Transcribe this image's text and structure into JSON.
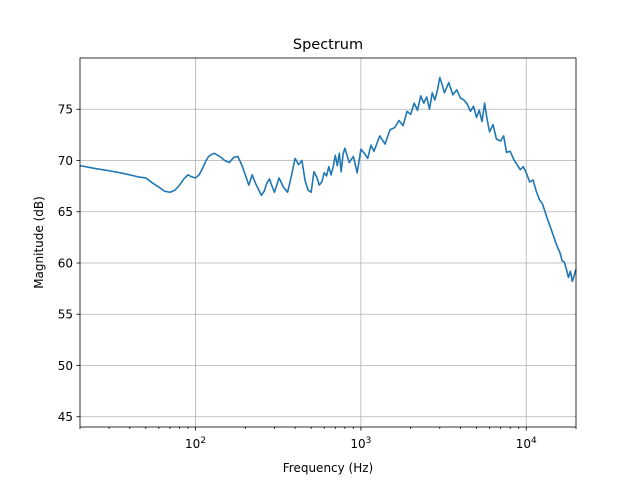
{
  "chart_data": {
    "type": "line",
    "title": "Spectrum",
    "xlabel": "Frequency (Hz)",
    "ylabel": "Magnitude (dB)",
    "xscale": "log",
    "xlim": [
      20,
      20000
    ],
    "ylim": [
      44,
      80
    ],
    "grid": true,
    "line_color": "#1f77b4",
    "x_ticks": [
      {
        "value": 100,
        "base": "10",
        "exp": "2"
      },
      {
        "value": 1000,
        "base": "10",
        "exp": "3"
      },
      {
        "value": 10000,
        "base": "10",
        "exp": "4"
      }
    ],
    "y_ticks": [
      45,
      50,
      55,
      60,
      65,
      70,
      75
    ],
    "series": [
      {
        "x": [
          20,
          25,
          30,
          35,
          40,
          45,
          50,
          55,
          60,
          65,
          70,
          75,
          80,
          85,
          90,
          95,
          100,
          105,
          110,
          115,
          120,
          125,
          130,
          140,
          150,
          160,
          170,
          180,
          190,
          200,
          210,
          220,
          230,
          240,
          250,
          260,
          270,
          280,
          290,
          300,
          320,
          340,
          360,
          380,
          400,
          420,
          440,
          460,
          480,
          500,
          520,
          540,
          560,
          580,
          600,
          620,
          640,
          660,
          680,
          700,
          720,
          740,
          760,
          780,
          800,
          850,
          900,
          950,
          1000,
          1050,
          1100,
          1150,
          1200,
          1300,
          1400,
          1500,
          1600,
          1700,
          1800,
          1900,
          2000,
          2100,
          2200,
          2300,
          2400,
          2500,
          2600,
          2700,
          2800,
          2900,
          3000,
          3100,
          3200,
          3400,
          3600,
          3800,
          4000,
          4200,
          4400,
          4600,
          4800,
          5000,
          5200,
          5400,
          5600,
          5800,
          6000,
          6300,
          6600,
          7000,
          7300,
          7600,
          8000,
          8400,
          8800,
          9200,
          9600,
          10000,
          10500,
          11000,
          11500,
          12000,
          12500,
          13000,
          13500,
          14000,
          14500,
          15000,
          15500,
          16000,
          16500,
          17000,
          17500,
          18000,
          18500,
          19000,
          19500,
          20000
        ],
        "y": [
          69.5,
          69.2,
          69.0,
          68.8,
          68.6,
          68.4,
          68.3,
          67.8,
          67.4,
          67.0,
          66.9,
          67.1,
          67.6,
          68.2,
          68.6,
          68.4,
          68.3,
          68.6,
          69.2,
          69.9,
          70.4,
          70.6,
          70.7,
          70.4,
          70.0,
          69.8,
          70.3,
          70.4,
          69.6,
          68.6,
          67.6,
          68.6,
          67.8,
          67.2,
          66.6,
          67.0,
          67.8,
          68.2,
          67.5,
          66.9,
          68.3,
          67.4,
          66.9,
          68.5,
          70.2,
          69.6,
          70.0,
          68.0,
          67.1,
          66.9,
          68.9,
          68.4,
          67.6,
          67.9,
          68.8,
          68.5,
          69.4,
          68.6,
          69.4,
          70.5,
          69.5,
          70.7,
          68.9,
          70.6,
          71.2,
          69.8,
          70.4,
          68.8,
          71.1,
          70.7,
          70.2,
          71.5,
          70.9,
          72.4,
          71.6,
          73.0,
          73.2,
          73.9,
          73.4,
          74.8,
          74.5,
          75.6,
          74.9,
          76.3,
          75.6,
          76.2,
          75.0,
          76.6,
          75.9,
          76.8,
          78.1,
          77.4,
          76.6,
          77.6,
          76.4,
          76.9,
          76.1,
          75.9,
          75.5,
          74.8,
          75.3,
          74.2,
          74.9,
          73.8,
          75.6,
          74.0,
          72.8,
          73.5,
          72.1,
          71.9,
          72.4,
          70.8,
          70.9,
          70.1,
          69.6,
          69.1,
          69.4,
          68.8,
          67.9,
          68.1,
          67.0,
          66.2,
          65.8,
          65.0,
          64.2,
          63.5,
          62.8,
          62.1,
          61.5,
          61.0,
          60.2,
          60.1,
          59.4,
          58.6,
          59.2,
          58.2,
          58.8,
          59.4
        ]
      }
    ]
  }
}
